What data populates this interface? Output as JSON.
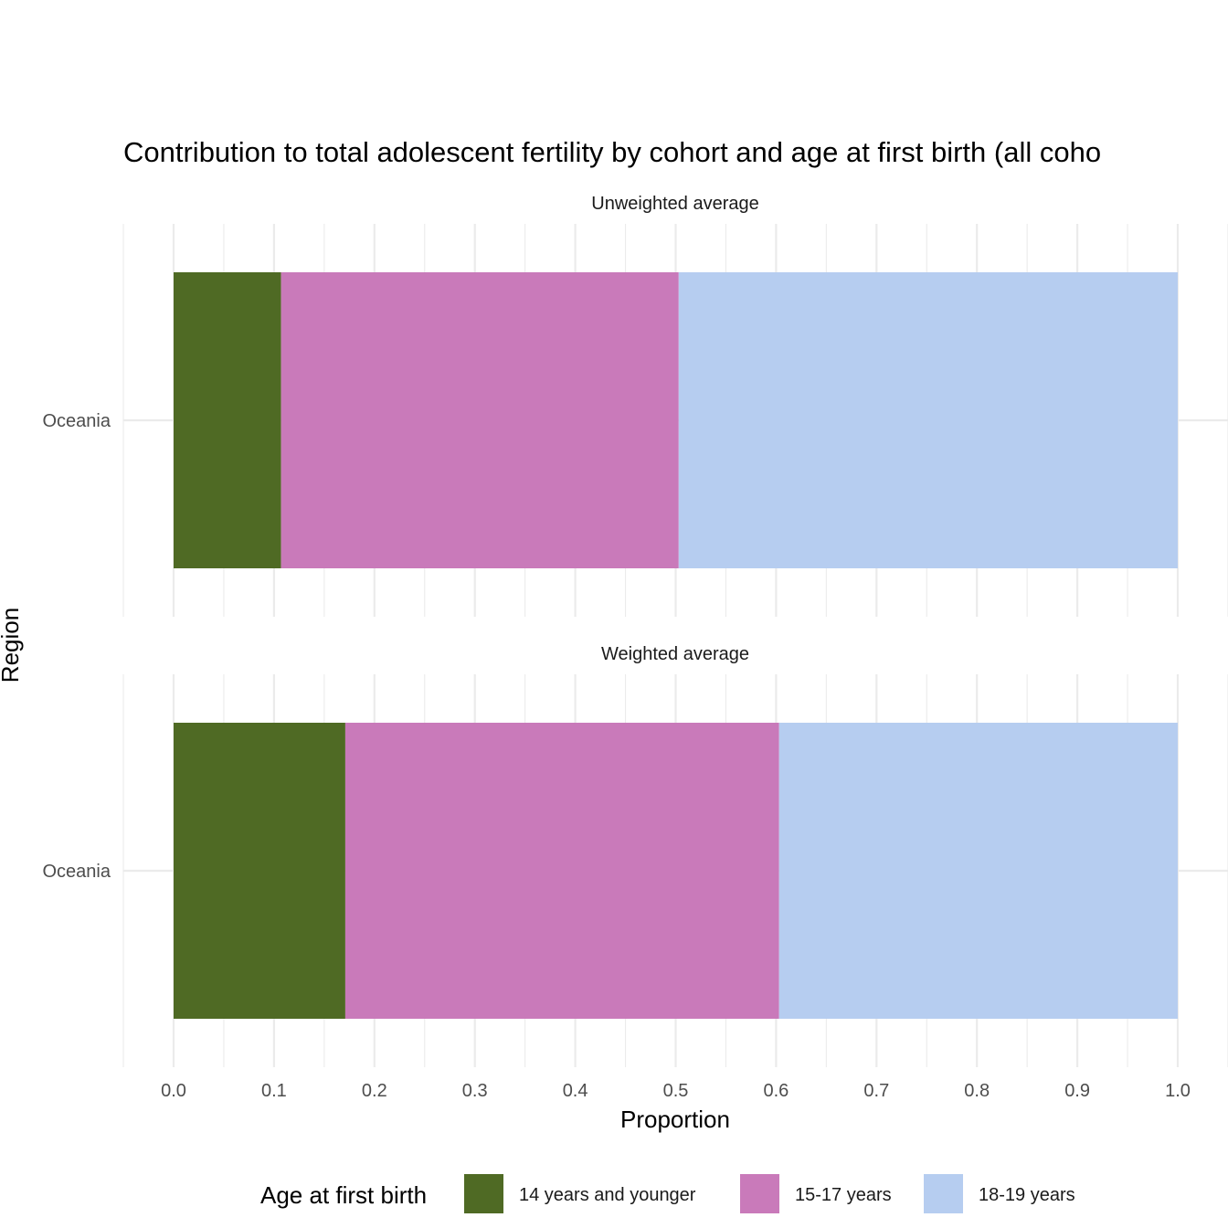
{
  "chart_data": {
    "type": "bar",
    "orientation": "horizontal",
    "stacked": true,
    "title": "Contribution to total adolescent fertility by cohort and age at first birth (all coho",
    "xlabel": "Proportion",
    "ylabel": "Region",
    "xlim": [
      0,
      1
    ],
    "x_ticks": [
      "0.0",
      "0.1",
      "0.2",
      "0.3",
      "0.4",
      "0.5",
      "0.6",
      "0.7",
      "0.8",
      "0.9",
      "1.0"
    ],
    "grid": true,
    "legend": {
      "title": "Age at first birth",
      "position": "bottom",
      "entries": [
        "14 years and younger",
        "15-17 years",
        "18-19 years"
      ]
    },
    "colors": [
      "#4f6a24",
      "#c97aba",
      "#b6cdf0"
    ],
    "panels": [
      {
        "strip": "Unweighted average",
        "categories": [
          "Oceania"
        ],
        "series": [
          {
            "name": "14 years and younger",
            "values": [
              0.107
            ]
          },
          {
            "name": "15-17 years",
            "values": [
              0.396
            ]
          },
          {
            "name": "18-19 years",
            "values": [
              0.497
            ]
          }
        ]
      },
      {
        "strip": "Weighted average",
        "categories": [
          "Oceania"
        ],
        "series": [
          {
            "name": "14 years and younger",
            "values": [
              0.171
            ]
          },
          {
            "name": "15-17 years",
            "values": [
              0.432
            ]
          },
          {
            "name": "18-19 years",
            "values": [
              0.397
            ]
          }
        ]
      }
    ]
  }
}
